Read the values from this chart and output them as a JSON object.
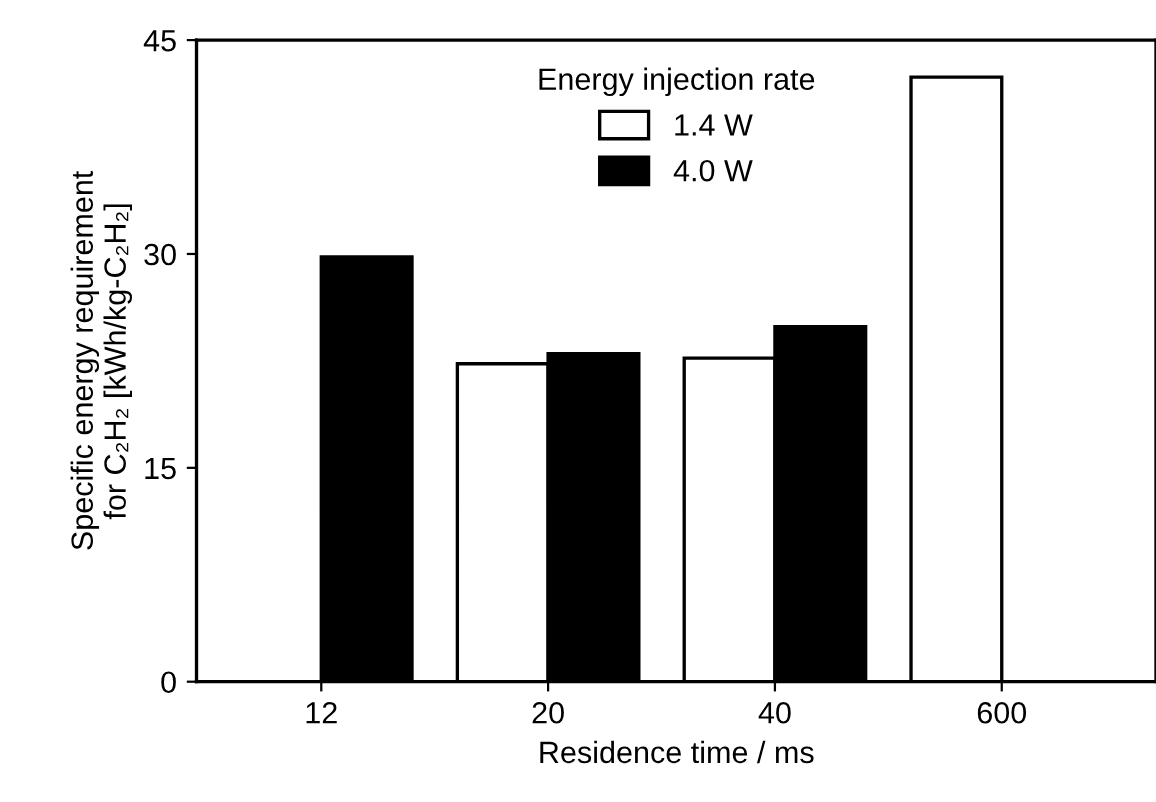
{
  "chart_data": {
    "type": "bar",
    "xlabel": "Residence time / ms",
    "ylabel": "Specific energy requirement\nfor C₂H₂ [kWh/kg-C₂H₂]",
    "legend_title": "Energy injection rate",
    "categories": [
      "12",
      "20",
      "40",
      "600"
    ],
    "series": [
      {
        "name": "1.4 W",
        "color": "#ffffff",
        "values": [
          null,
          22.3,
          22.7,
          42.4
        ]
      },
      {
        "name": "4.0 W",
        "color": "#000000",
        "values": [
          29.8,
          23.0,
          24.9,
          null
        ]
      }
    ],
    "ylim": [
      0,
      45
    ],
    "yticks": [
      0,
      15,
      30,
      45
    ],
    "grid": false,
    "legend": "top"
  }
}
